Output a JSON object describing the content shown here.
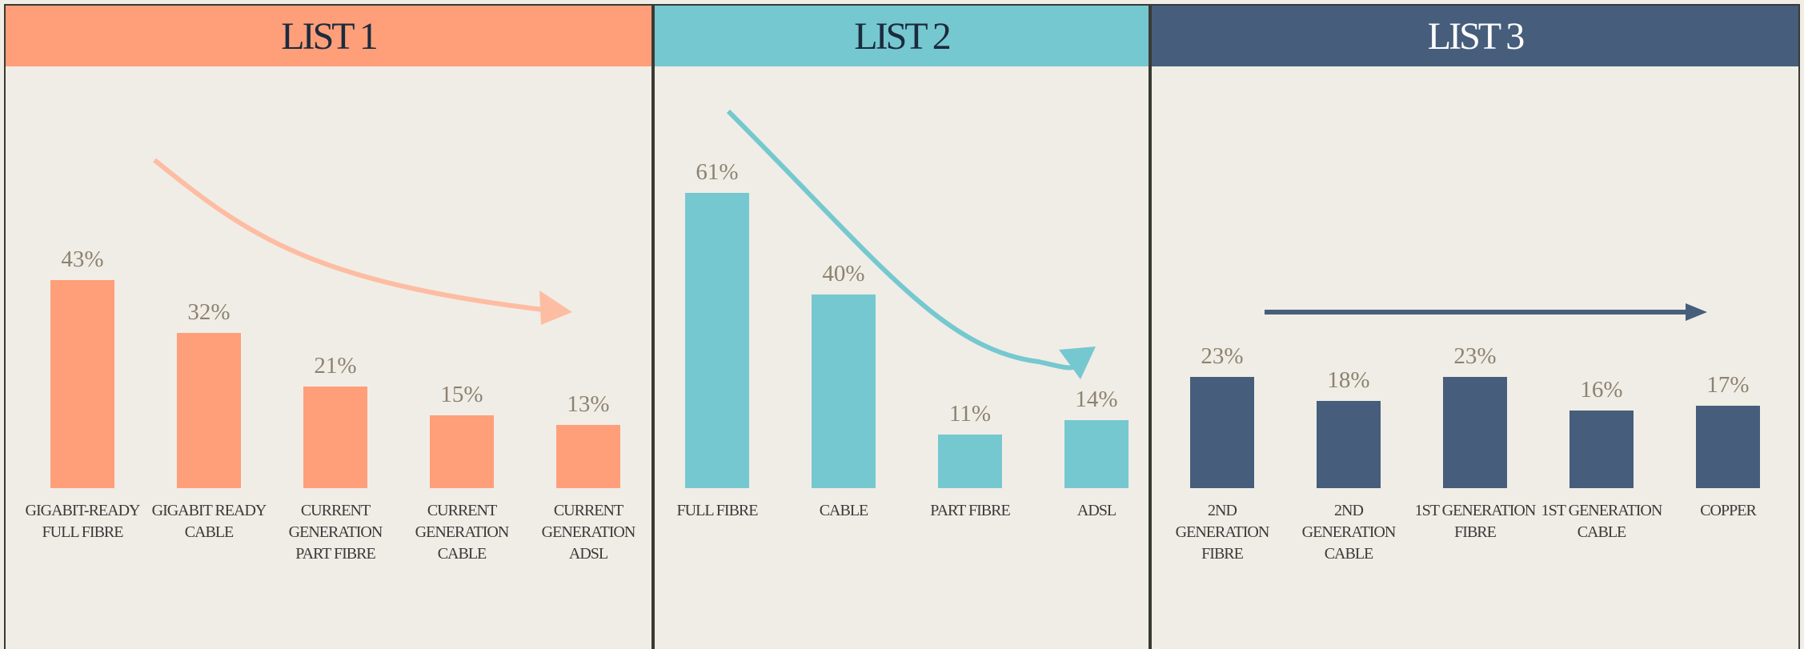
{
  "chart_data": [
    {
      "type": "bar",
      "title": "LIST 1",
      "color": "#fe9f7a",
      "categories": [
        "GIGABIT-READY FULL FIBRE",
        "GIGABIT READY CABLE",
        "CURRENT GENERATION PART FIBRE",
        "CURRENT GENERATION CABLE",
        "CURRENT GENERATION ADSL"
      ],
      "values": [
        43,
        32,
        21,
        15,
        13
      ],
      "value_labels": [
        "43%",
        "32%",
        "21%",
        "15%",
        "13%"
      ]
    },
    {
      "type": "bar",
      "title": "LIST 2",
      "color": "#76c8d0",
      "categories": [
        "FULL FIBRE",
        "CABLE",
        "PART FIBRE",
        "ADSL"
      ],
      "values": [
        61,
        40,
        11,
        14
      ],
      "value_labels": [
        "61%",
        "40%",
        "11%",
        "14%"
      ]
    },
    {
      "type": "bar",
      "title": "LIST 3",
      "color": "#465e7b",
      "categories": [
        "2ND GENERATION FIBRE",
        "2ND GENERATION CABLE",
        "1ST GENERATION FIBRE",
        "1ST GENERATION CABLE",
        "COPPER"
      ],
      "values": [
        23,
        18,
        23,
        16,
        17
      ],
      "value_labels": [
        "23%",
        "18%",
        "23%",
        "16%",
        "17%"
      ]
    }
  ]
}
